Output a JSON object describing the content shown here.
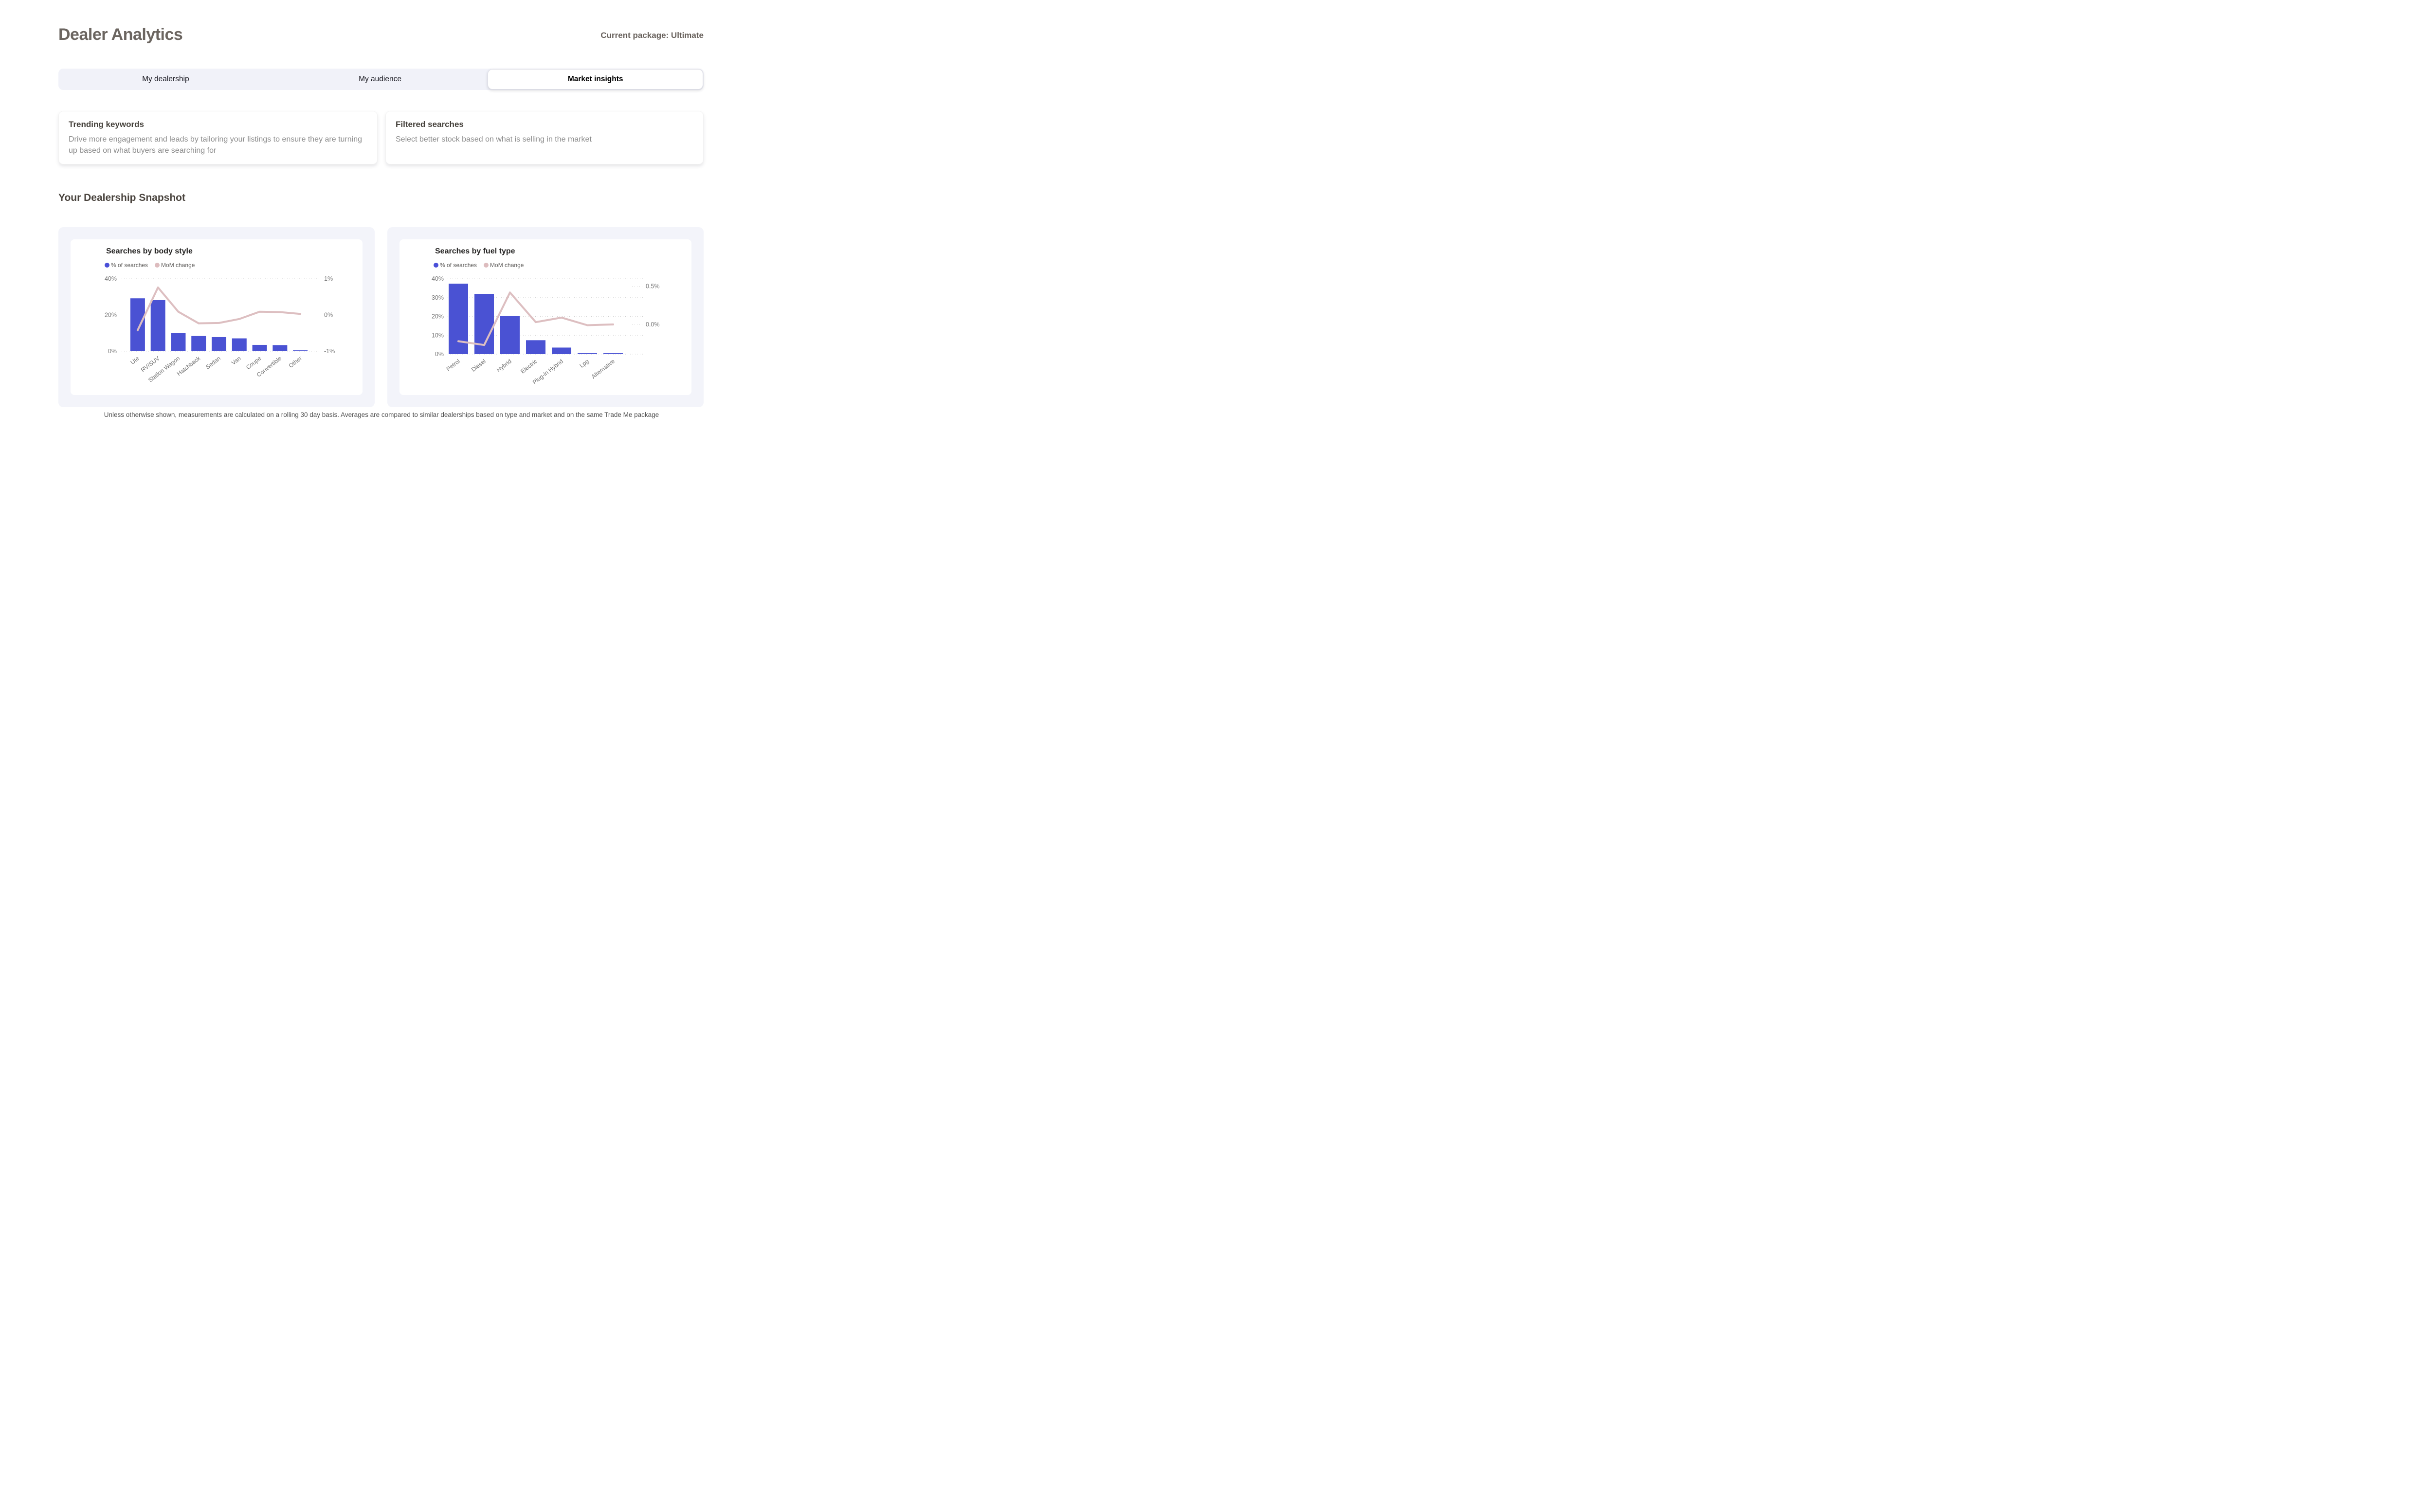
{
  "page": {
    "title": "Dealer Analytics",
    "package_label": "Current package: Ultimate",
    "section_heading": "Your Dealership Snapshot",
    "footer": "Unless otherwise shown, measurements are calculated on a rolling 30 day basis.  Averages are compared to similar dealerships based on type and market and on the same Trade Me package"
  },
  "tabs": [
    {
      "label": "My dealership",
      "active": false
    },
    {
      "label": "My audience",
      "active": false
    },
    {
      "label": "Market insights",
      "active": true
    }
  ],
  "cards": [
    {
      "title": "Trending keywords",
      "body": "Drive more engagement and leads by tailoring your listings to ensure they are turning up based on what buyers are searching for"
    },
    {
      "title": "Filtered searches",
      "body": "Select better stock based on what is selling in the market"
    }
  ],
  "chart_data": [
    {
      "type": "bar",
      "subtype": "combo-bar-line",
      "title": "Searches by body style",
      "categories": [
        "Ute",
        "RV/SUV",
        "Station Wagon",
        "Hatchback",
        "Sedan",
        "Van",
        "Coupe",
        "Convertible",
        "Other"
      ],
      "series": [
        {
          "name": "% of searches",
          "type": "bar",
          "axis": "left",
          "values": [
            29.2,
            28.2,
            10.1,
            8.4,
            7.8,
            7.1,
            3.5,
            3.4,
            0.5
          ]
        },
        {
          "name": "MoM change",
          "type": "line",
          "axis": "right",
          "values": [
            -0.42,
            0.76,
            0.09,
            -0.23,
            -0.22,
            -0.11,
            0.09,
            0.08,
            0.03
          ]
        }
      ],
      "left_axis": {
        "min": 0,
        "max": 40,
        "ticks": [
          {
            "value": 0,
            "label": "0%"
          },
          {
            "value": 20,
            "label": "20%"
          },
          {
            "value": 40,
            "label": "40%"
          }
        ]
      },
      "right_axis": {
        "min": -1,
        "max": 1,
        "ticks": [
          {
            "value": -1,
            "label": "-1%"
          },
          {
            "value": 0,
            "label": "0%"
          },
          {
            "value": 1,
            "label": "1%"
          }
        ]
      },
      "grid": "dotted-horizontal",
      "legend_position": "top-left",
      "colors": {
        "bar": "#4a52d3",
        "line": "#ddbfc1",
        "legend_bar": "#4a4fd8",
        "legend_line": "#ddbcbe"
      }
    },
    {
      "type": "bar",
      "subtype": "combo-bar-line",
      "title": "Searches by fuel type",
      "categories": [
        "Petrol",
        "Diesel",
        "Hybrid",
        "Electric",
        "Plug-in Hybrid",
        "Lpg",
        "Alternative"
      ],
      "series": [
        {
          "name": "% of searches",
          "type": "bar",
          "axis": "left",
          "values": [
            37.4,
            32.0,
            20.2,
            7.4,
            3.5,
            0.5,
            0.5
          ]
        },
        {
          "name": "MoM change",
          "type": "line",
          "axis": "right",
          "values": [
            -0.22,
            -0.27,
            0.42,
            0.03,
            0.09,
            -0.01,
            0.0
          ]
        }
      ],
      "left_axis": {
        "min": 0,
        "max": 40,
        "ticks": [
          {
            "value": 0,
            "label": "0%"
          },
          {
            "value": 10,
            "label": "10%"
          },
          {
            "value": 20,
            "label": "20%"
          },
          {
            "value": 30,
            "label": "30%"
          },
          {
            "value": 40,
            "label": "40%"
          }
        ]
      },
      "right_axis": {
        "min": -0.39,
        "max": 0.6,
        "ticks": [
          {
            "value": 0,
            "label": "0.0%"
          },
          {
            "value": 0.5,
            "label": "0.5%"
          }
        ]
      },
      "grid": "dotted-horizontal",
      "legend_position": "top-left",
      "colors": {
        "bar": "#4a52d3",
        "line": "#ddbfc1",
        "legend_bar": "#4a4fd8",
        "legend_line": "#ddbcbe"
      }
    }
  ]
}
